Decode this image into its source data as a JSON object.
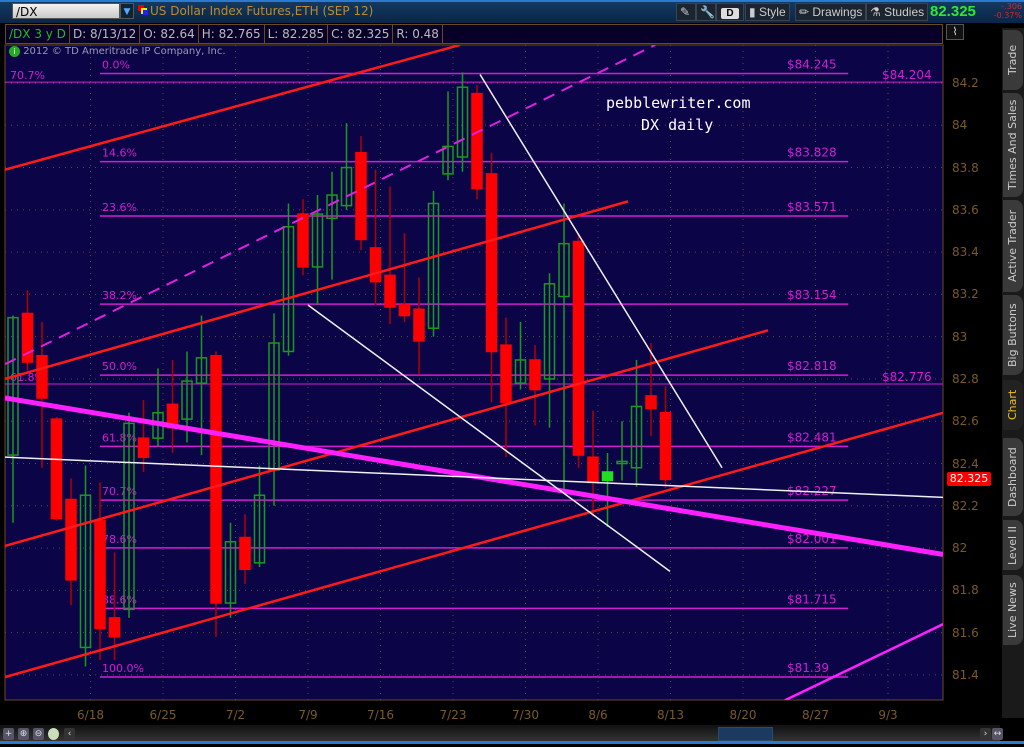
{
  "header": {
    "symbol": "/DX",
    "title": "US Dollar Index Futures,ETH (SEP 12)",
    "buttons": {
      "d_label": "D",
      "style": "Style",
      "drawings": "Drawings",
      "studies": "Studies"
    },
    "last_price": "82.325",
    "change": "-.306",
    "change_pct": "-0.37%"
  },
  "info": {
    "study": "/DX 3 y D",
    "date": "D: 8/13/12",
    "open": "O: 82.64",
    "high": "H: 82.765",
    "low": "L: 82.285",
    "close": "C: 82.325",
    "range": "R: 0.48"
  },
  "copyright": "2012 © TD Ameritrade IP Company, Inc.",
  "watermark": {
    "line1": "pebblewriter.com",
    "line2": "DX daily"
  },
  "sidebar": {
    "tabs": [
      {
        "label": "Trade"
      },
      {
        "label": "Times And Sales"
      },
      {
        "label": "Active Trader"
      },
      {
        "label": "Big Buttons"
      },
      {
        "label": "Chart",
        "active": true
      },
      {
        "label": "Dashboard"
      },
      {
        "label": "Level II"
      },
      {
        "label": "Live News"
      }
    ]
  },
  "colors": {
    "background": "#0b0446",
    "up": "#1a9a1a",
    "down": "#ff0000",
    "fib": "#d21ed2",
    "axis_text": "#7a5a2a",
    "last_up": "#2ee82e",
    "last_down": "#e0201e"
  },
  "chart_data": {
    "type": "candlestick",
    "ylim": [
      81.3,
      84.45
    ],
    "yticks": [
      "84.2",
      "84",
      "83.8",
      "83.6",
      "83.4",
      "83.2",
      "83",
      "82.8",
      "82.6",
      "82.4",
      "82.2",
      "82",
      "81.8",
      "81.6",
      "81.4"
    ],
    "xticks": [
      "6/18",
      "6/25",
      "7/2",
      "7/9",
      "7/16",
      "7/23",
      "7/30",
      "8/6",
      "8/13",
      "8/20",
      "8/27",
      "9/3"
    ],
    "grid": true,
    "last_price_tag": "82.325",
    "candles": [
      {
        "d": "6/11",
        "o": 82.44,
        "h": 83.1,
        "l": 82.12,
        "c": 83.09
      },
      {
        "d": "6/12",
        "o": 83.11,
        "h": 83.22,
        "l": 82.84,
        "c": 82.88
      },
      {
        "d": "6/13",
        "o": 82.91,
        "h": 83.07,
        "l": 82.38,
        "c": 82.71
      },
      {
        "d": "6/14",
        "o": 82.61,
        "h": 82.62,
        "l": 82.13,
        "c": 82.14
      },
      {
        "d": "6/15",
        "o": 82.23,
        "h": 82.33,
        "l": 81.73,
        "c": 81.85
      },
      {
        "d": "6/18",
        "o": 81.53,
        "h": 82.39,
        "l": 81.44,
        "c": 82.25
      },
      {
        "d": "6/19",
        "o": 82.13,
        "h": 82.31,
        "l": 81.47,
        "c": 81.62
      },
      {
        "d": "6/20",
        "o": 81.67,
        "h": 81.98,
        "l": 81.47,
        "c": 81.58
      },
      {
        "d": "6/21",
        "o": 81.71,
        "h": 82.64,
        "l": 81.67,
        "c": 82.59
      },
      {
        "d": "6/22",
        "o": 82.52,
        "h": 82.7,
        "l": 82.36,
        "c": 82.43
      },
      {
        "d": "6/25",
        "o": 82.52,
        "h": 82.85,
        "l": 82.48,
        "c": 82.64
      },
      {
        "d": "6/26",
        "o": 82.68,
        "h": 82.89,
        "l": 82.45,
        "c": 82.57
      },
      {
        "d": "6/27",
        "o": 82.61,
        "h": 82.93,
        "l": 82.5,
        "c": 82.79
      },
      {
        "d": "6/28",
        "o": 82.78,
        "h": 83.1,
        "l": 82.44,
        "c": 82.9
      },
      {
        "d": "6/29",
        "o": 82.91,
        "h": 82.93,
        "l": 81.58,
        "c": 81.74
      },
      {
        "d": "7/2",
        "o": 81.74,
        "h": 82.12,
        "l": 81.67,
        "c": 82.03
      },
      {
        "d": "7/3",
        "o": 82.05,
        "h": 82.16,
        "l": 81.83,
        "c": 81.9
      },
      {
        "d": "7/4",
        "o": 81.93,
        "h": 82.39,
        "l": 81.91,
        "c": 82.25
      },
      {
        "d": "7/5",
        "o": 82.37,
        "h": 83.11,
        "l": 82.2,
        "c": 82.97
      },
      {
        "d": "7/6",
        "o": 82.93,
        "h": 83.63,
        "l": 82.91,
        "c": 83.52
      },
      {
        "d": "7/9",
        "o": 83.58,
        "h": 83.65,
        "l": 83.29,
        "c": 83.33
      },
      {
        "d": "7/10",
        "o": 83.33,
        "h": 83.67,
        "l": 83.15,
        "c": 83.58
      },
      {
        "d": "7/11",
        "o": 83.56,
        "h": 83.78,
        "l": 83.27,
        "c": 83.67
      },
      {
        "d": "7/12",
        "o": 83.62,
        "h": 84.01,
        "l": 83.6,
        "c": 83.8
      },
      {
        "d": "7/13",
        "o": 83.87,
        "h": 83.95,
        "l": 83.41,
        "c": 83.46
      },
      {
        "d": "7/16",
        "o": 83.42,
        "h": 83.79,
        "l": 83.15,
        "c": 83.26
      },
      {
        "d": "7/17",
        "o": 83.29,
        "h": 83.71,
        "l": 83.06,
        "c": 83.14
      },
      {
        "d": "7/18",
        "o": 83.15,
        "h": 83.49,
        "l": 83.07,
        "c": 83.1
      },
      {
        "d": "7/19",
        "o": 83.13,
        "h": 83.28,
        "l": 82.82,
        "c": 82.98
      },
      {
        "d": "7/20",
        "o": 83.04,
        "h": 83.69,
        "l": 83.0,
        "c": 83.63
      },
      {
        "d": "7/23",
        "o": 83.77,
        "h": 84.16,
        "l": 83.74,
        "c": 83.9
      },
      {
        "d": "7/24",
        "o": 83.85,
        "h": 84.25,
        "l": 83.78,
        "c": 84.18
      },
      {
        "d": "7/25",
        "o": 84.15,
        "h": 84.19,
        "l": 83.65,
        "c": 83.7
      },
      {
        "d": "7/26",
        "o": 83.77,
        "h": 83.87,
        "l": 82.69,
        "c": 82.93
      },
      {
        "d": "7/27",
        "o": 82.96,
        "h": 83.09,
        "l": 82.43,
        "c": 82.69
      },
      {
        "d": "7/30",
        "o": 82.78,
        "h": 83.07,
        "l": 82.75,
        "c": 82.89
      },
      {
        "d": "7/31",
        "o": 82.89,
        "h": 82.96,
        "l": 82.58,
        "c": 82.75
      },
      {
        "d": "8/1",
        "o": 82.8,
        "h": 83.3,
        "l": 82.57,
        "c": 83.25
      },
      {
        "d": "8/2",
        "o": 83.19,
        "h": 83.63,
        "l": 82.27,
        "c": 83.44
      },
      {
        "d": "8/3",
        "o": 83.45,
        "h": 83.49,
        "l": 82.38,
        "c": 82.44
      },
      {
        "d": "8/6",
        "o": 82.43,
        "h": 82.65,
        "l": 82.15,
        "c": 82.31
      },
      {
        "d": "8/7",
        "o": 82.32,
        "h": 82.45,
        "l": 82.1,
        "c": 82.36
      },
      {
        "d": "8/8",
        "o": 82.4,
        "h": 82.6,
        "l": 82.32,
        "c": 82.41
      },
      {
        "d": "8/9",
        "o": 82.38,
        "h": 82.89,
        "l": 82.29,
        "c": 82.67
      },
      {
        "d": "8/10",
        "o": 82.72,
        "h": 82.97,
        "l": 82.53,
        "c": 82.66
      },
      {
        "d": "8/13",
        "o": 82.64,
        "h": 82.765,
        "l": 82.285,
        "c": 82.325
      }
    ],
    "fib_main": {
      "from_bar": 6,
      "to_bar": 57.6,
      "levels": [
        {
          "pct": "0.0%",
          "price": 84.245,
          "label": "$84.245"
        },
        {
          "pct": "14.6%",
          "price": 83.828,
          "label": "$83.828"
        },
        {
          "pct": "23.6%",
          "price": 83.571,
          "label": "$83.571"
        },
        {
          "pct": "38.2%",
          "price": 83.154,
          "label": "$83.154"
        },
        {
          "pct": "50.0%",
          "price": 82.818,
          "label": "$82.818"
        },
        {
          "pct": "61.8%",
          "price": 82.481,
          "label": "$82.481"
        },
        {
          "pct": "70.7%",
          "price": 82.227,
          "label": "$82.227"
        },
        {
          "pct": "78.6%",
          "price": 82.001,
          "label": "$82.001"
        },
        {
          "pct": "88.6%",
          "price": 81.715,
          "label": "$81.715"
        },
        {
          "pct": "100.0%",
          "price": 81.39,
          "label": "$81.39"
        }
      ]
    },
    "fib_secondary": {
      "levels": [
        {
          "pct": "70.7%",
          "price": 84.204,
          "label": "$84.204"
        },
        {
          "pct": "61.8%",
          "price": 82.776,
          "label": "$82.776"
        }
      ]
    },
    "trendlines": [
      {
        "color": "red",
        "p1": [
          -0.55,
          83.79
        ],
        "p2": [
          30.83,
          84.38
        ]
      },
      {
        "color": "red",
        "p1": [
          -0.55,
          82.8
        ],
        "p2": [
          42.41,
          83.64
        ]
      },
      {
        "color": "red",
        "p1": [
          -0.55,
          82.01
        ],
        "p2": [
          52.07,
          83.03
        ]
      },
      {
        "color": "red",
        "p1": [
          -0.55,
          81.39
        ],
        "p2": [
          64.14,
          82.64
        ]
      },
      {
        "color": "magenta-dashed",
        "p1": [
          -0.55,
          82.87
        ],
        "p2": [
          44.28,
          84.38
        ]
      },
      {
        "color": "magenta-thick",
        "p1": [
          -0.55,
          82.71
        ],
        "p2": [
          64.14,
          81.97
        ]
      },
      {
        "color": "white",
        "p1": [
          -0.55,
          82.43
        ],
        "p2": [
          64.14,
          82.24
        ]
      },
      {
        "color": "white",
        "p1": [
          20.34,
          83.15
        ],
        "p2": [
          45.31,
          81.89
        ]
      },
      {
        "color": "white",
        "p1": [
          32.21,
          84.24
        ],
        "p2": [
          48.9,
          82.38
        ]
      },
      {
        "color": "magenta",
        "p1": [
          53.24,
          81.28
        ],
        "p2": [
          64.14,
          81.64
        ]
      }
    ]
  }
}
